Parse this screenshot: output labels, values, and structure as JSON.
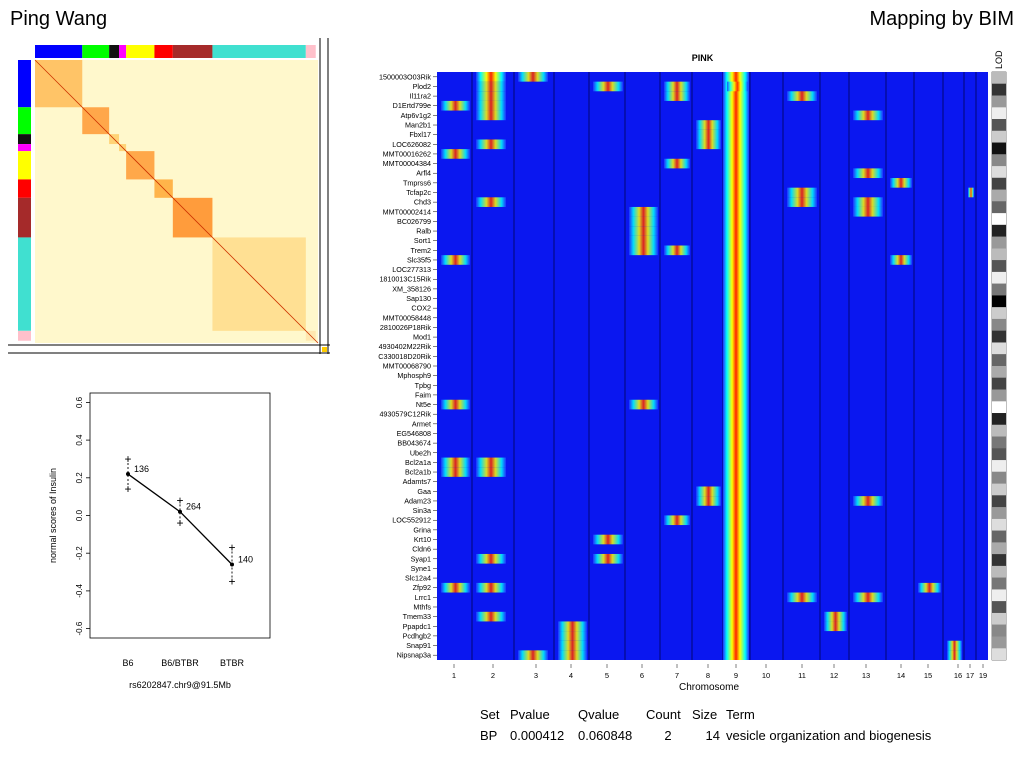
{
  "header": {
    "author": "Ping Wang",
    "mapping": "Mapping by BIM"
  },
  "matrix": {
    "module_colors": [
      "#0000ff",
      "#00ff00",
      "#111111",
      "#ff00ff",
      "#ffff00",
      "#ff0000",
      "#a52a2a",
      "#40e0d0",
      "#ffc0cb"
    ],
    "module_fractions": [
      0.167,
      0.095,
      0.035,
      0.025,
      0.1,
      0.065,
      0.14,
      0.33,
      0.035
    ]
  },
  "dotplot": {
    "chart_data": {
      "type": "scatter",
      "categories": [
        "B6",
        "B6/BTBR",
        "BTBR"
      ],
      "means": [
        0.22,
        0.02,
        -0.26
      ],
      "upper": [
        0.3,
        0.08,
        -0.17
      ],
      "lower": [
        0.14,
        -0.04,
        -0.35
      ],
      "counts": [
        "136",
        "264",
        "140"
      ],
      "xlabel": "rs6202847.chr9@91.5Mb",
      "ylabel": "normal scores of Insulin",
      "ylim": [
        -0.65,
        0.65
      ],
      "yticks": [
        "-0.6",
        "-0.4",
        "-0.2",
        "0.0",
        "0.2",
        "0.4",
        "0.6"
      ]
    }
  },
  "lod": {
    "chart_data": {
      "type": "heatmap",
      "title": "PINK",
      "xlabel": "Chromosome",
      "legend_label": "LOD",
      "chromosomes": [
        "1",
        "2",
        "3",
        "4",
        "5",
        "6",
        "7",
        "8",
        "9",
        "10",
        "11",
        "12",
        "13",
        "14",
        "15",
        "16",
        "17",
        "19"
      ],
      "genes": [
        "1500003O03Rik",
        "Plod2",
        "Il11ra2",
        "D1Ertd799e",
        "Atp6v1g2",
        "Man2b1",
        "Fbxl17",
        "LOC626082",
        "MMT00016262",
        "MMT00004384",
        "Arfl4",
        "Tmprss6",
        "Tcfap2c",
        "Chd3",
        "MMT00002414",
        "BC026799",
        "Ralb",
        "Sort1",
        "Trem2",
        "Slc35f5",
        "LOC277313",
        "1810013C15Rik",
        "XM_358126",
        "Sap130",
        "COX2",
        "MMT00058448",
        "2810026P18Rik",
        "Mod1",
        "4930402M22Rik",
        "C330018D20Rik",
        "MMT00068790",
        "Mphosph9",
        "Tpbg",
        "Faim",
        "Nt5e",
        "4930579C12Rik",
        "Armet",
        "EG546808",
        "BB043674",
        "Ube2h",
        "Bcl2a1a",
        "Bcl2a1b",
        "Adamts7",
        "Gaa",
        "Adam23",
        "Sin3a",
        "LOC552912",
        "Grina",
        "Krt10",
        "Cldn6",
        "Syap1",
        "Syne1",
        "Slc12a4",
        "Zfp92",
        "Lrrc1",
        "Mthfs",
        "Tmem33",
        "Ppapdc1",
        "Pcdhgb2",
        "Snap91",
        "Nipsnap3a"
      ]
    }
  },
  "go_table": {
    "headers": [
      "Set",
      "Pvalue",
      "Qvalue",
      "Count",
      "Size",
      "Term"
    ],
    "row": [
      "BP",
      "0.000412",
      "0.060848",
      "2",
      "14",
      "vesicle organization and biogenesis"
    ]
  }
}
